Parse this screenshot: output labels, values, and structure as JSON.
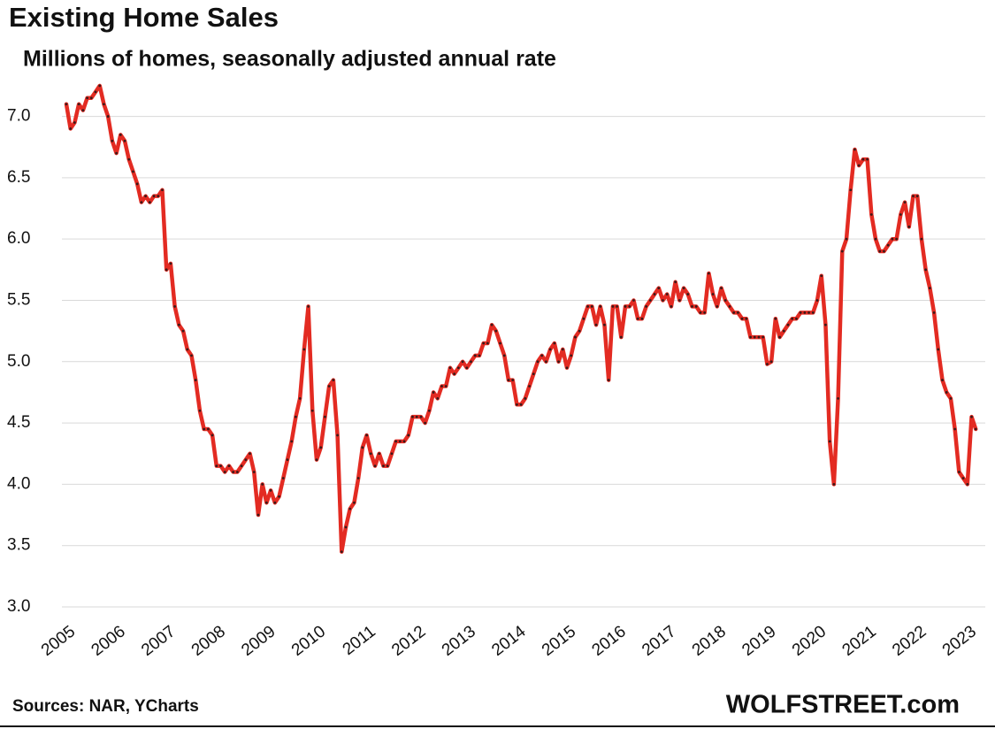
{
  "chart_data": {
    "type": "line",
    "title": "Existing Home Sales",
    "subtitle": "Millions of homes, seasonally adjusted annual rate",
    "source": "Sources: NAR, YCharts",
    "brand": "WOLFSTREET.com",
    "categories": [
      "2005",
      null,
      null,
      null,
      null,
      null,
      null,
      null,
      null,
      null,
      null,
      null,
      "2006",
      null,
      null,
      null,
      null,
      null,
      null,
      null,
      null,
      null,
      null,
      null,
      "2007",
      null,
      null,
      null,
      null,
      null,
      null,
      null,
      null,
      null,
      null,
      null,
      "2008",
      null,
      null,
      null,
      null,
      null,
      null,
      null,
      null,
      null,
      null,
      null,
      "2009",
      null,
      null,
      null,
      null,
      null,
      null,
      null,
      null,
      null,
      null,
      null,
      "2010",
      null,
      null,
      null,
      null,
      null,
      null,
      null,
      null,
      null,
      null,
      null,
      "2011",
      null,
      null,
      null,
      null,
      null,
      null,
      null,
      null,
      null,
      null,
      null,
      "2012",
      null,
      null,
      null,
      null,
      null,
      null,
      null,
      null,
      null,
      null,
      null,
      "2013",
      null,
      null,
      null,
      null,
      null,
      null,
      null,
      null,
      null,
      null,
      null,
      "2014",
      null,
      null,
      null,
      null,
      null,
      null,
      null,
      null,
      null,
      null,
      null,
      "2015",
      null,
      null,
      null,
      null,
      null,
      null,
      null,
      null,
      null,
      null,
      null,
      "2016",
      null,
      null,
      null,
      null,
      null,
      null,
      null,
      null,
      null,
      null,
      null,
      "2017",
      null,
      null,
      null,
      null,
      null,
      null,
      null,
      null,
      null,
      null,
      null,
      "2018",
      null,
      null,
      null,
      null,
      null,
      null,
      null,
      null,
      null,
      null,
      null,
      "2019",
      null,
      null,
      null,
      null,
      null,
      null,
      null,
      null,
      null,
      null,
      null,
      "2020",
      null,
      null,
      null,
      null,
      null,
      null,
      null,
      null,
      null,
      null,
      null,
      "2021",
      null,
      null,
      null,
      null,
      null,
      null,
      null,
      null,
      null,
      null,
      null,
      "2022",
      null,
      null,
      null,
      null,
      null,
      null,
      null,
      null,
      null,
      null,
      null,
      "2023",
      null,
      null
    ],
    "series": [
      {
        "name": "Existing Home Sales",
        "color": "#e32b22",
        "marker_color": "#3a1a1a",
        "values": [
          7.1,
          6.9,
          6.95,
          7.1,
          7.05,
          7.15,
          7.15,
          7.2,
          7.25,
          7.1,
          7.0,
          6.8,
          6.7,
          6.85,
          6.8,
          6.65,
          6.55,
          6.45,
          6.3,
          6.35,
          6.3,
          6.35,
          6.35,
          6.4,
          5.75,
          5.8,
          5.45,
          5.3,
          5.25,
          5.1,
          5.05,
          4.85,
          4.6,
          4.45,
          4.45,
          4.4,
          4.15,
          4.15,
          4.1,
          4.15,
          4.1,
          4.1,
          4.15,
          4.2,
          4.25,
          4.1,
          3.75,
          4.0,
          3.85,
          3.95,
          3.85,
          3.9,
          4.05,
          4.2,
          4.35,
          4.55,
          4.7,
          5.1,
          5.45,
          4.6,
          4.2,
          4.3,
          4.55,
          4.8,
          4.85,
          4.4,
          3.45,
          3.65,
          3.8,
          3.85,
          4.05,
          4.3,
          4.4,
          4.25,
          4.15,
          4.25,
          4.15,
          4.15,
          4.25,
          4.35,
          4.35,
          4.35,
          4.4,
          4.55,
          4.55,
          4.55,
          4.5,
          4.6,
          4.75,
          4.7,
          4.8,
          4.8,
          4.95,
          4.9,
          4.95,
          5.0,
          4.95,
          5.0,
          5.05,
          5.05,
          5.15,
          5.15,
          5.3,
          5.25,
          5.15,
          5.05,
          4.85,
          4.85,
          4.65,
          4.65,
          4.7,
          4.8,
          4.9,
          5.0,
          5.05,
          5.0,
          5.1,
          5.15,
          5.0,
          5.1,
          4.95,
          5.05,
          5.2,
          5.25,
          5.35,
          5.45,
          5.45,
          5.3,
          5.45,
          5.3,
          4.85,
          5.45,
          5.45,
          5.2,
          5.45,
          5.45,
          5.5,
          5.35,
          5.35,
          5.45,
          5.5,
          5.55,
          5.6,
          5.5,
          5.55,
          5.45,
          5.65,
          5.5,
          5.6,
          5.55,
          5.45,
          5.45,
          5.4,
          5.4,
          5.72,
          5.55,
          5.45,
          5.6,
          5.5,
          5.45,
          5.4,
          5.4,
          5.35,
          5.35,
          5.2,
          5.2,
          5.2,
          5.2,
          4.98,
          5.0,
          5.35,
          5.2,
          5.25,
          5.3,
          5.35,
          5.35,
          5.4,
          5.4,
          5.4,
          5.4,
          5.5,
          5.7,
          5.3,
          4.35,
          4.0,
          4.7,
          5.9,
          6.0,
          6.4,
          6.73,
          6.6,
          6.65,
          6.65,
          6.2,
          6.0,
          5.9,
          5.9,
          5.95,
          6.0,
          6.0,
          6.2,
          6.3,
          6.1,
          6.35,
          6.35,
          6.0,
          5.75,
          5.6,
          5.4,
          5.1,
          4.85,
          4.75,
          4.7,
          4.45,
          4.1,
          4.05,
          4.0,
          4.55,
          4.45
        ]
      }
    ],
    "ylim": [
      3.0,
      7.3
    ],
    "yticks": [
      {
        "value": 3.0,
        "label": "3.0"
      },
      3.5,
      {
        "value": 4.0,
        "label": "4.0"
      },
      4.5,
      {
        "value": 5.0,
        "label": "5.0"
      },
      5.5,
      {
        "value": 6.0,
        "label": "6.0"
      },
      6.5,
      {
        "value": 7.0,
        "label": "7.0"
      }
    ],
    "grid": true
  }
}
